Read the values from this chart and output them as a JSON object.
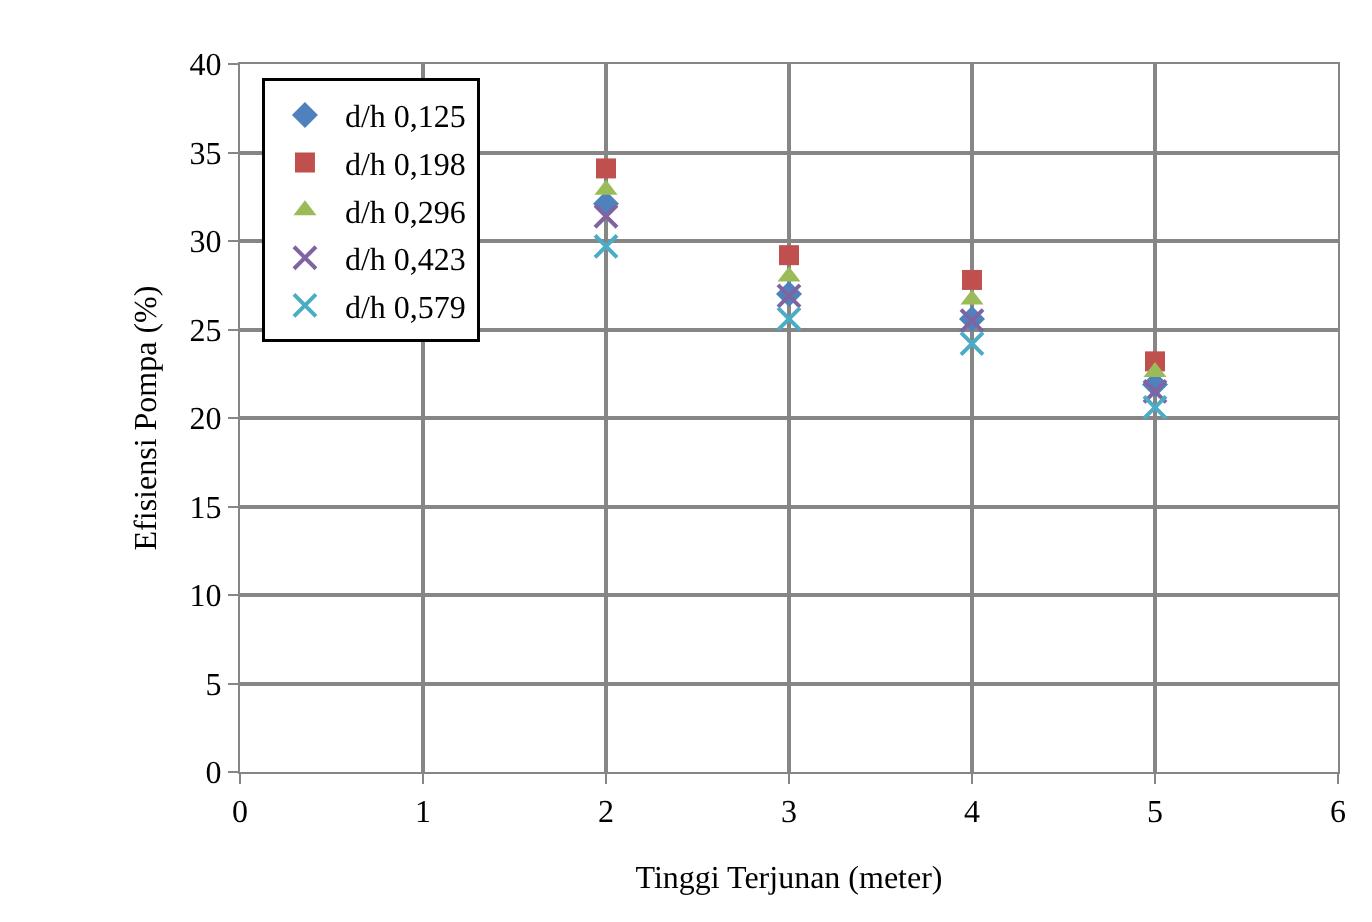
{
  "chart_data": {
    "type": "scatter",
    "xlabel": "Tinggi Terjunan (meter)",
    "ylabel": "Efisiensi Pompa (%)",
    "x": [
      2,
      3,
      4,
      5
    ],
    "series": [
      {
        "name": "d/h 0,125",
        "color": "#4f81bd",
        "marker": "diamond",
        "values": [
          32.1,
          27.0,
          25.6,
          21.9
        ]
      },
      {
        "name": "d/h 0,198",
        "color": "#c0504d",
        "marker": "square",
        "values": [
          34.1,
          29.2,
          27.8,
          23.2
        ]
      },
      {
        "name": "d/h 0,296",
        "color": "#9bbb59",
        "marker": "triangle",
        "values": [
          32.9,
          28.0,
          26.7,
          22.6
        ]
      },
      {
        "name": "d/h 0,423",
        "color": "#8064a2",
        "marker": "cross",
        "values": [
          31.4,
          26.9,
          25.5,
          21.5
        ]
      },
      {
        "name": "d/h 0,579",
        "color": "#4bacc6",
        "marker": "cross",
        "values": [
          29.7,
          25.6,
          24.2,
          20.6
        ]
      }
    ],
    "xlim": [
      0,
      6
    ],
    "xticks": [
      0,
      1,
      2,
      3,
      4,
      5,
      6
    ],
    "ylim": [
      0,
      40
    ],
    "yticks": [
      0,
      5,
      10,
      15,
      20,
      25,
      30,
      35,
      40
    ],
    "grid": true,
    "legend": "top left"
  }
}
